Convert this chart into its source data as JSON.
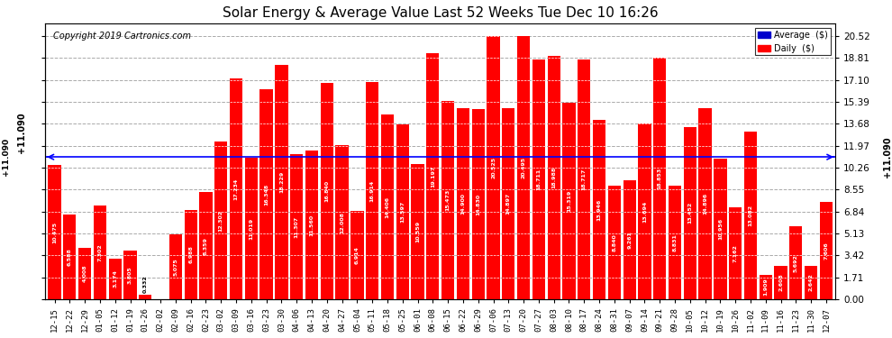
{
  "title": "Solar Energy & Average Value Last 52 Weeks Tue Dec 10 16:26",
  "copyright": "Copyright 2019 Cartronics.com",
  "average_line": 11.09,
  "average_label": "+11.090",
  "bar_color": "#ff0000",
  "average_line_color": "#0000ff",
  "grid_color": "#aaaaaa",
  "background_color": "#ffffff",
  "yticks_right": [
    0.0,
    1.71,
    3.42,
    5.13,
    6.84,
    8.55,
    10.26,
    11.97,
    13.68,
    15.39,
    17.1,
    18.81,
    20.52
  ],
  "categories": [
    "12-15",
    "12-22",
    "12-29",
    "01-05",
    "01-12",
    "01-19",
    "01-26",
    "02-02",
    "02-09",
    "02-16",
    "02-23",
    "03-02",
    "03-09",
    "03-16",
    "03-23",
    "03-30",
    "04-06",
    "04-13",
    "04-20",
    "04-27",
    "05-04",
    "05-11",
    "05-18",
    "05-25",
    "06-01",
    "06-08",
    "06-15",
    "06-22",
    "06-29",
    "07-06",
    "07-13",
    "07-20",
    "07-27",
    "08-03",
    "08-10",
    "08-17",
    "08-24",
    "08-31",
    "09-07",
    "09-14",
    "09-21",
    "09-28",
    "10-05",
    "10-12",
    "10-19",
    "10-26",
    "11-02",
    "11-09",
    "11-16",
    "11-23",
    "11-30",
    "12-07"
  ],
  "values": [
    10.475,
    6.588,
    4.008,
    7.302,
    3.174,
    3.805,
    0.332,
    0.0,
    5.075,
    6.988,
    8.359,
    12.302,
    17.234,
    11.019,
    16.348,
    18.229,
    11.307,
    11.56,
    16.84,
    12.008,
    6.914,
    16.914,
    14.406,
    13.597,
    10.559,
    19.197,
    15.473,
    14.9,
    14.83,
    20.525,
    14.897,
    20.495,
    18.711,
    18.988,
    15.319,
    18.717,
    13.946,
    8.84,
    9.261,
    13.694,
    18.853,
    8.831,
    13.452,
    14.896,
    10.956,
    7.162,
    13.082,
    1.909,
    2.608,
    5.692,
    2.642,
    7.606
  ],
  "legend_avg_color": "#0000cc",
  "legend_daily_color": "#ff0000",
  "legend_avg_label": "Average  ($)",
  "legend_daily_label": "Daily  ($)"
}
